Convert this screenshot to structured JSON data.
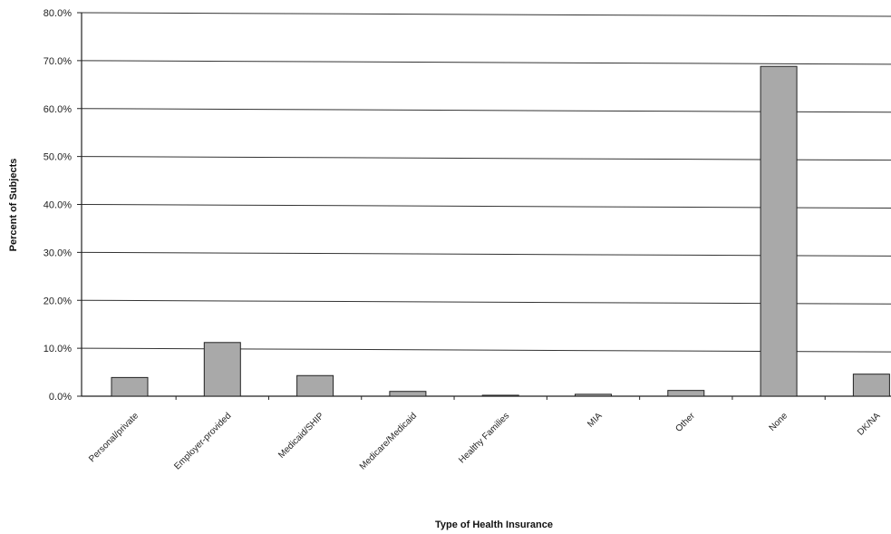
{
  "chart_data": {
    "type": "bar",
    "title": "",
    "xlabel": "Type of Health Insurance",
    "ylabel": "Percent of Subjects",
    "categories": [
      "Personal/private",
      "Employer-provided",
      "Medicaid/SHIP",
      "Medicare/Medicaid",
      "Healthy Families",
      "MIA",
      "Other",
      "None",
      "DK/NA"
    ],
    "values": [
      3.9,
      11.2,
      4.3,
      1.0,
      0.2,
      0.4,
      1.2,
      68.8,
      4.6
    ],
    "ylim": [
      0,
      80
    ],
    "yticks": [
      "0.0%",
      "10.0%",
      "20.0%",
      "30.0%",
      "40.0%",
      "50.0%",
      "60.0%",
      "70.0%",
      "80.0%"
    ],
    "grid": true,
    "legend": "none",
    "colors": {
      "bar": "#a9a9a9",
      "bar_stroke": "#222222",
      "grid": "#333333"
    }
  }
}
